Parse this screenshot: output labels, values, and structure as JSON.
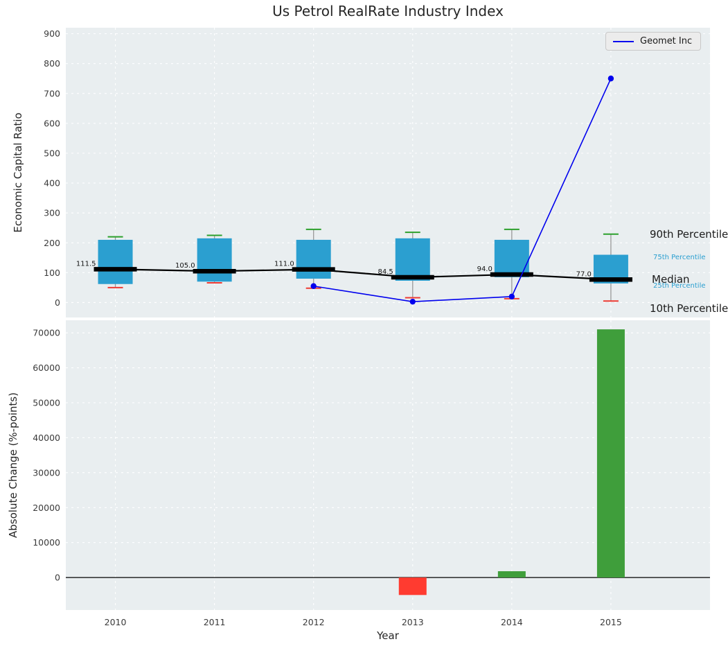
{
  "title": "Us Petrol RealRate Industry Index",
  "colors": {
    "plot_background": "#e9eef0",
    "grid": "#ffffff",
    "tick_text": "#3a3a3a",
    "box_fill": "#2b9fd0",
    "whisker": "#999999",
    "cap_90th": "#2ca02c",
    "cap_10th": "#ee3b33",
    "median_line": "#000000",
    "series_line": "#0000ee",
    "bar_positive": "#3f9e3b",
    "bar_negative": "#ff3b30",
    "annotation_large": "#1a1a1a",
    "annotation_small": "#2b9fd0",
    "title_text": "#262626"
  },
  "chart_data": [
    {
      "type": "boxplot",
      "title": "Us Petrol RealRate Industry Index",
      "ylabel": "Economic Capital Ratio",
      "ylim": [
        -50,
        920
      ],
      "yticks": [
        0,
        100,
        200,
        300,
        400,
        500,
        600,
        700,
        800,
        900
      ],
      "grid": true,
      "legend": {
        "label": "Geomet Inc",
        "position": "upper right"
      },
      "categories": [
        "2010",
        "2011",
        "2012",
        "2013",
        "2014",
        "2015"
      ],
      "boxes": [
        {
          "category": "2010",
          "p10": 50,
          "p25": 62,
          "median": 111.5,
          "p75": 210,
          "p90": 220,
          "median_label": "111.5"
        },
        {
          "category": "2011",
          "p10": 66,
          "p25": 70,
          "median": 105.0,
          "p75": 215,
          "p90": 225,
          "median_label": "105.0"
        },
        {
          "category": "2012",
          "p10": 48,
          "p25": 80,
          "median": 111.0,
          "p75": 210,
          "p90": 245,
          "median_label": "111.0"
        },
        {
          "category": "2013",
          "p10": 16,
          "p25": 73,
          "median": 84.5,
          "p75": 215,
          "p90": 235,
          "median_label": "84.5"
        },
        {
          "category": "2014",
          "p10": 13,
          "p25": 85,
          "median": 94.0,
          "p75": 210,
          "p90": 245,
          "median_label": "94.0"
        },
        {
          "category": "2015",
          "p10": 5,
          "p25": 64,
          "median": 77.0,
          "p75": 160,
          "p90": 229,
          "median_label": "77.0"
        }
      ],
      "series": [
        {
          "name": "Geomet Inc",
          "x": [
            "2012",
            "2013",
            "2014",
            "2015"
          ],
          "values": [
            55,
            3,
            20,
            750
          ]
        }
      ],
      "percentile_annotations": [
        "90th Percentile",
        "75th Percentile",
        "Median",
        "25th Percentile",
        "10th Percentile"
      ]
    },
    {
      "type": "bar",
      "xlabel": "Year",
      "ylabel": "Absolute Change (%-points)",
      "ylim": [
        -9300,
        73600
      ],
      "yticks": [
        0,
        10000,
        20000,
        30000,
        40000,
        50000,
        60000,
        70000
      ],
      "grid": true,
      "categories": [
        "2010",
        "2011",
        "2012",
        "2013",
        "2014",
        "2015"
      ],
      "values": [
        null,
        null,
        null,
        -5000,
        1800,
        71000
      ]
    }
  ]
}
